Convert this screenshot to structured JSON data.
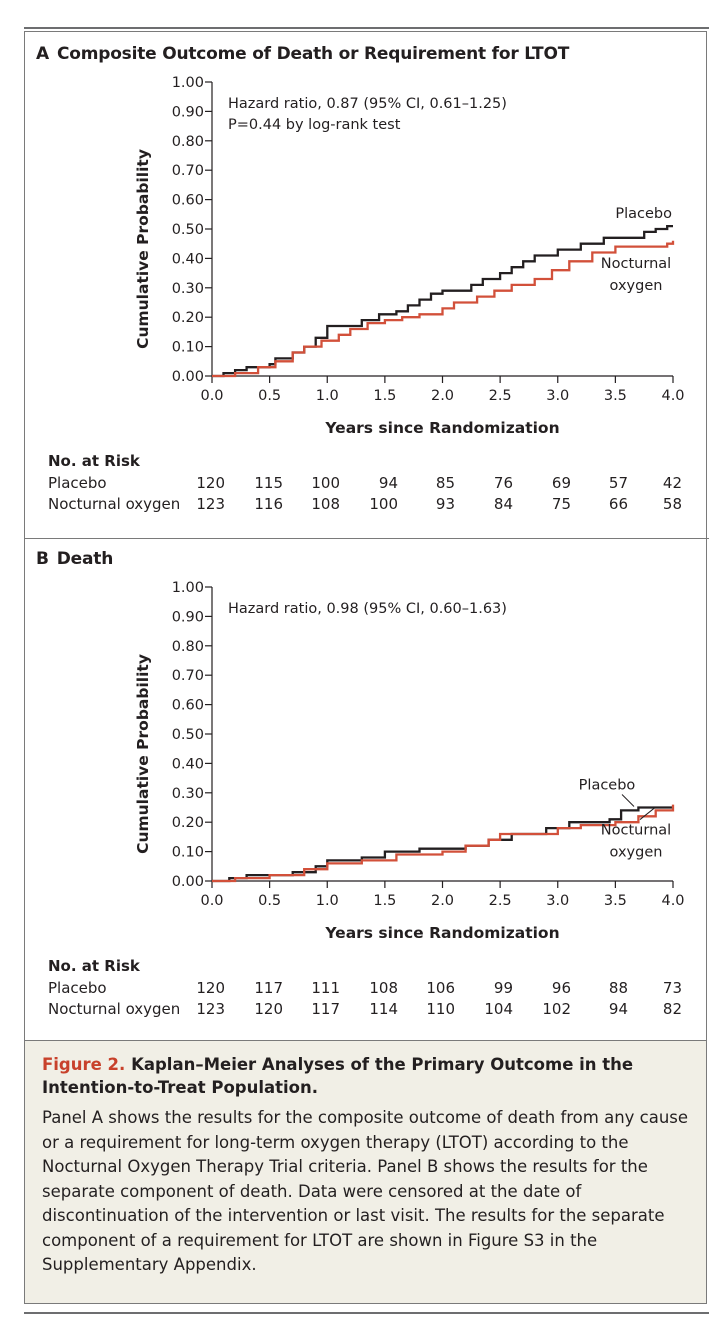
{
  "chart_data": [
    {
      "type": "line",
      "panel": "A",
      "title": "Composite Outcome of Death or Requirement for LTOT",
      "xlabel": "Years since Randomization",
      "ylabel": "Cumulative Probability",
      "xlim": [
        0,
        4
      ],
      "ylim": [
        0,
        1
      ],
      "xticks": [
        "0.0",
        "0.5",
        "1.0",
        "1.5",
        "2.0",
        "2.5",
        "3.0",
        "3.5",
        "4.0"
      ],
      "yticks": [
        "0.00",
        "0.10",
        "0.20",
        "0.30",
        "0.40",
        "0.50",
        "0.60",
        "0.70",
        "0.80",
        "0.90",
        "1.00"
      ],
      "annotations": [
        "Hazard ratio, 0.87 (95% CI, 0.61–1.25)",
        "P=0.44 by log-rank test"
      ],
      "series": [
        {
          "name": "Placebo",
          "label_lines": [
            "Placebo"
          ],
          "color": "#231f20",
          "x": [
            0,
            0.1,
            0.2,
            0.3,
            0.5,
            0.55,
            0.7,
            0.8,
            0.9,
            1.0,
            1.3,
            1.45,
            1.6,
            1.7,
            1.8,
            1.9,
            2.0,
            2.25,
            2.35,
            2.5,
            2.6,
            2.7,
            2.8,
            3.0,
            3.2,
            3.4,
            3.6,
            3.75,
            3.85,
            3.95,
            4.0
          ],
          "y": [
            0,
            0.01,
            0.02,
            0.03,
            0.04,
            0.06,
            0.08,
            0.1,
            0.13,
            0.17,
            0.19,
            0.21,
            0.22,
            0.24,
            0.26,
            0.28,
            0.29,
            0.31,
            0.33,
            0.35,
            0.37,
            0.39,
            0.41,
            0.43,
            0.45,
            0.47,
            0.47,
            0.49,
            0.5,
            0.51,
            0.51
          ]
        },
        {
          "name": "Nocturnal oxygen",
          "label_lines": [
            "Nocturnal",
            "oxygen"
          ],
          "color": "#d2503a",
          "x": [
            0,
            0.2,
            0.4,
            0.55,
            0.7,
            0.8,
            0.95,
            1.1,
            1.2,
            1.35,
            1.5,
            1.65,
            1.8,
            2.0,
            2.1,
            2.3,
            2.45,
            2.6,
            2.8,
            2.95,
            3.1,
            3.3,
            3.5,
            3.85,
            3.95,
            4.0
          ],
          "y": [
            0,
            0.01,
            0.03,
            0.05,
            0.08,
            0.1,
            0.12,
            0.14,
            0.16,
            0.18,
            0.19,
            0.2,
            0.21,
            0.23,
            0.25,
            0.27,
            0.29,
            0.31,
            0.33,
            0.36,
            0.39,
            0.42,
            0.44,
            0.44,
            0.45,
            0.46
          ]
        }
      ],
      "risk_table": {
        "heading": "No. at Risk",
        "rows": [
          {
            "label": "Placebo",
            "values": [
              "120",
              "115",
              "100",
              "94",
              "85",
              "76",
              "69",
              "57",
              "42"
            ]
          },
          {
            "label": "Nocturnal oxygen",
            "values": [
              "123",
              "116",
              "108",
              "100",
              "93",
              "84",
              "75",
              "66",
              "58"
            ]
          }
        ]
      }
    },
    {
      "type": "line",
      "panel": "B",
      "title": "Death",
      "xlabel": "Years since Randomization",
      "ylabel": "Cumulative Probability",
      "xlim": [
        0,
        4
      ],
      "ylim": [
        0,
        1
      ],
      "xticks": [
        "0.0",
        "0.5",
        "1.0",
        "1.5",
        "2.0",
        "2.5",
        "3.0",
        "3.5",
        "4.0"
      ],
      "yticks": [
        "0.00",
        "0.10",
        "0.20",
        "0.30",
        "0.40",
        "0.50",
        "0.60",
        "0.70",
        "0.80",
        "0.90",
        "1.00"
      ],
      "annotations": [
        "Hazard ratio, 0.98 (95% CI, 0.60–1.63)"
      ],
      "series": [
        {
          "name": "Placebo",
          "label_lines": [
            "Placebo"
          ],
          "color": "#231f20",
          "x": [
            0,
            0.15,
            0.3,
            0.7,
            0.9,
            1.0,
            1.3,
            1.5,
            1.8,
            2.2,
            2.4,
            2.6,
            2.9,
            3.1,
            3.45,
            3.55,
            3.7,
            4.0
          ],
          "y": [
            0,
            0.01,
            0.02,
            0.03,
            0.05,
            0.07,
            0.08,
            0.1,
            0.11,
            0.12,
            0.14,
            0.16,
            0.18,
            0.2,
            0.21,
            0.24,
            0.25,
            0.25
          ]
        },
        {
          "name": "Nocturnal oxygen",
          "label_lines": [
            "Nocturnal",
            "oxygen"
          ],
          "color": "#d2503a",
          "x": [
            0,
            0.2,
            0.5,
            0.8,
            1.0,
            1.3,
            1.6,
            2.0,
            2.2,
            2.4,
            2.5,
            3.0,
            3.2,
            3.5,
            3.7,
            3.85,
            4.0
          ],
          "y": [
            0,
            0.01,
            0.02,
            0.04,
            0.06,
            0.07,
            0.09,
            0.1,
            0.12,
            0.14,
            0.16,
            0.18,
            0.19,
            0.2,
            0.22,
            0.24,
            0.26
          ]
        }
      ],
      "risk_table": {
        "heading": "No. at Risk",
        "rows": [
          {
            "label": "Placebo",
            "values": [
              "120",
              "117",
              "111",
              "108",
              "106",
              "99",
              "96",
              "88",
              "73"
            ]
          },
          {
            "label": "Nocturnal oxygen",
            "values": [
              "123",
              "120",
              "117",
              "114",
              "110",
              "104",
              "102",
              "94",
              "82"
            ]
          }
        ]
      }
    }
  ],
  "caption": {
    "figure_label": "Figure 2.",
    "title": "Kaplan–Meier Analyses of the Primary Outcome in the Intention-to-Treat Population.",
    "body": "Panel A shows the results for the composite outcome of death from any cause or a requirement for long-term oxygen therapy (LTOT) according to the Nocturnal Oxygen Therapy Trial criteria. Panel B shows the results for the separate component of death. Data were censored at the date of discontinuation of the intervention or last visit. The results for the separate component of a requirement for LTOT are shown in Figure S3 in the Supplementary Appendix."
  }
}
